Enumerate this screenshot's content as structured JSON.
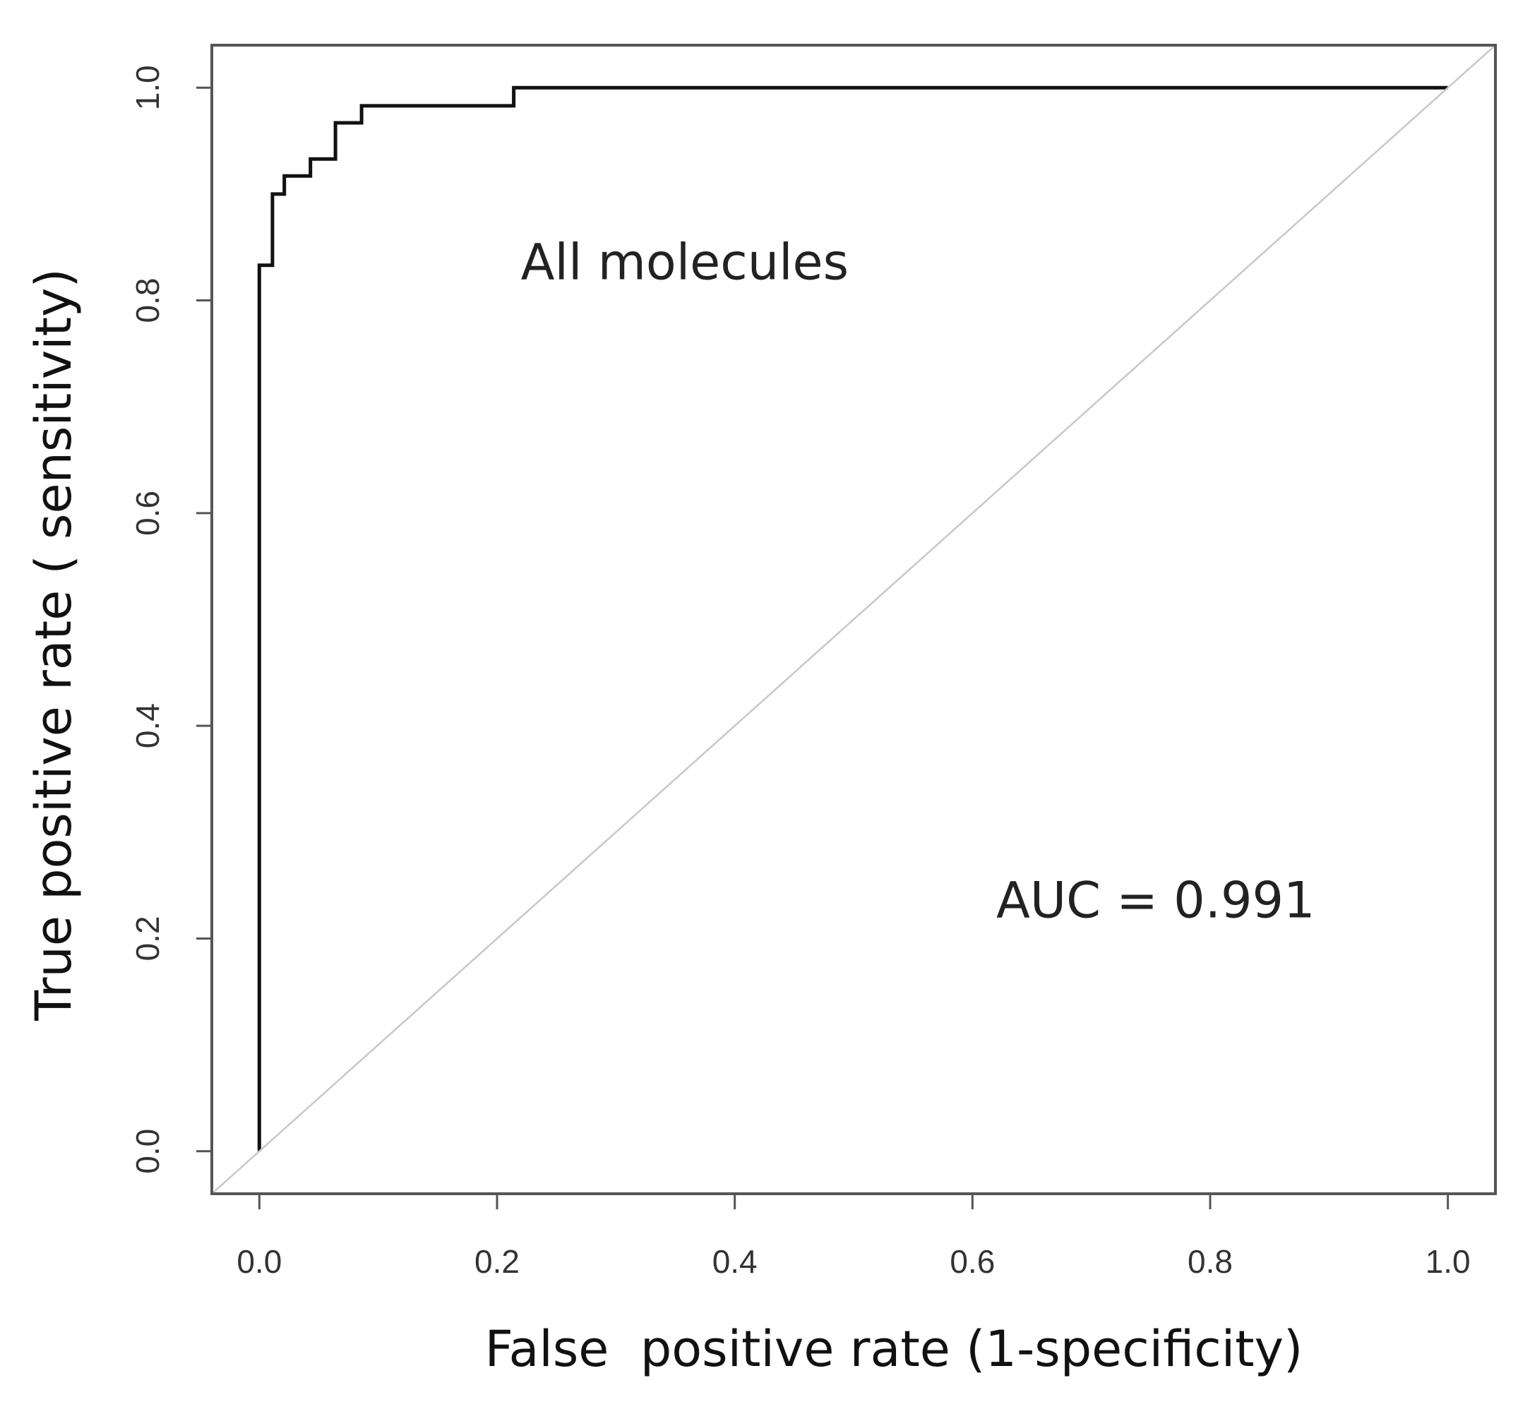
{
  "chart_data": {
    "type": "line",
    "title": "",
    "xlabel": "False  positive rate (1-specificity)",
    "ylabel": "True positive rate ( sensitivity)",
    "xlim": [
      -0.04,
      1.04
    ],
    "ylim": [
      -0.04,
      1.04
    ],
    "xticks": [
      0.0,
      0.2,
      0.4,
      0.6,
      0.8,
      1.0
    ],
    "yticks": [
      0.0,
      0.2,
      0.4,
      0.6,
      0.8,
      1.0
    ],
    "xtick_labels": [
      "0.0",
      "0.2",
      "0.4",
      "0.6",
      "0.8",
      "1.0"
    ],
    "ytick_labels": [
      "0.0",
      "0.2",
      "0.4",
      "0.6",
      "0.8",
      "1.0"
    ],
    "grid": false,
    "series": [
      {
        "kind": "roc-step",
        "color": "#111111",
        "x": [
          0.0,
          0.0,
          0.011,
          0.011,
          0.021,
          0.021,
          0.043,
          0.043,
          0.064,
          0.064,
          0.086,
          0.086,
          0.214,
          0.214,
          1.0
        ],
        "y": [
          0.0,
          0.833,
          0.833,
          0.9,
          0.9,
          0.917,
          0.917,
          0.933,
          0.933,
          0.967,
          0.967,
          0.983,
          0.983,
          1.0,
          1.0
        ]
      },
      {
        "kind": "reference-diagonal",
        "color": "#c8c8c8",
        "x": [
          -0.04,
          1.04
        ],
        "y": [
          -0.04,
          1.04
        ]
      }
    ],
    "annotations": [
      {
        "id": "series-label",
        "text": "All molecules",
        "x": 0.22,
        "y": 0.82
      },
      {
        "id": "auc",
        "text": "AUC = 0.991",
        "x": 0.62,
        "y": 0.22
      }
    ]
  }
}
